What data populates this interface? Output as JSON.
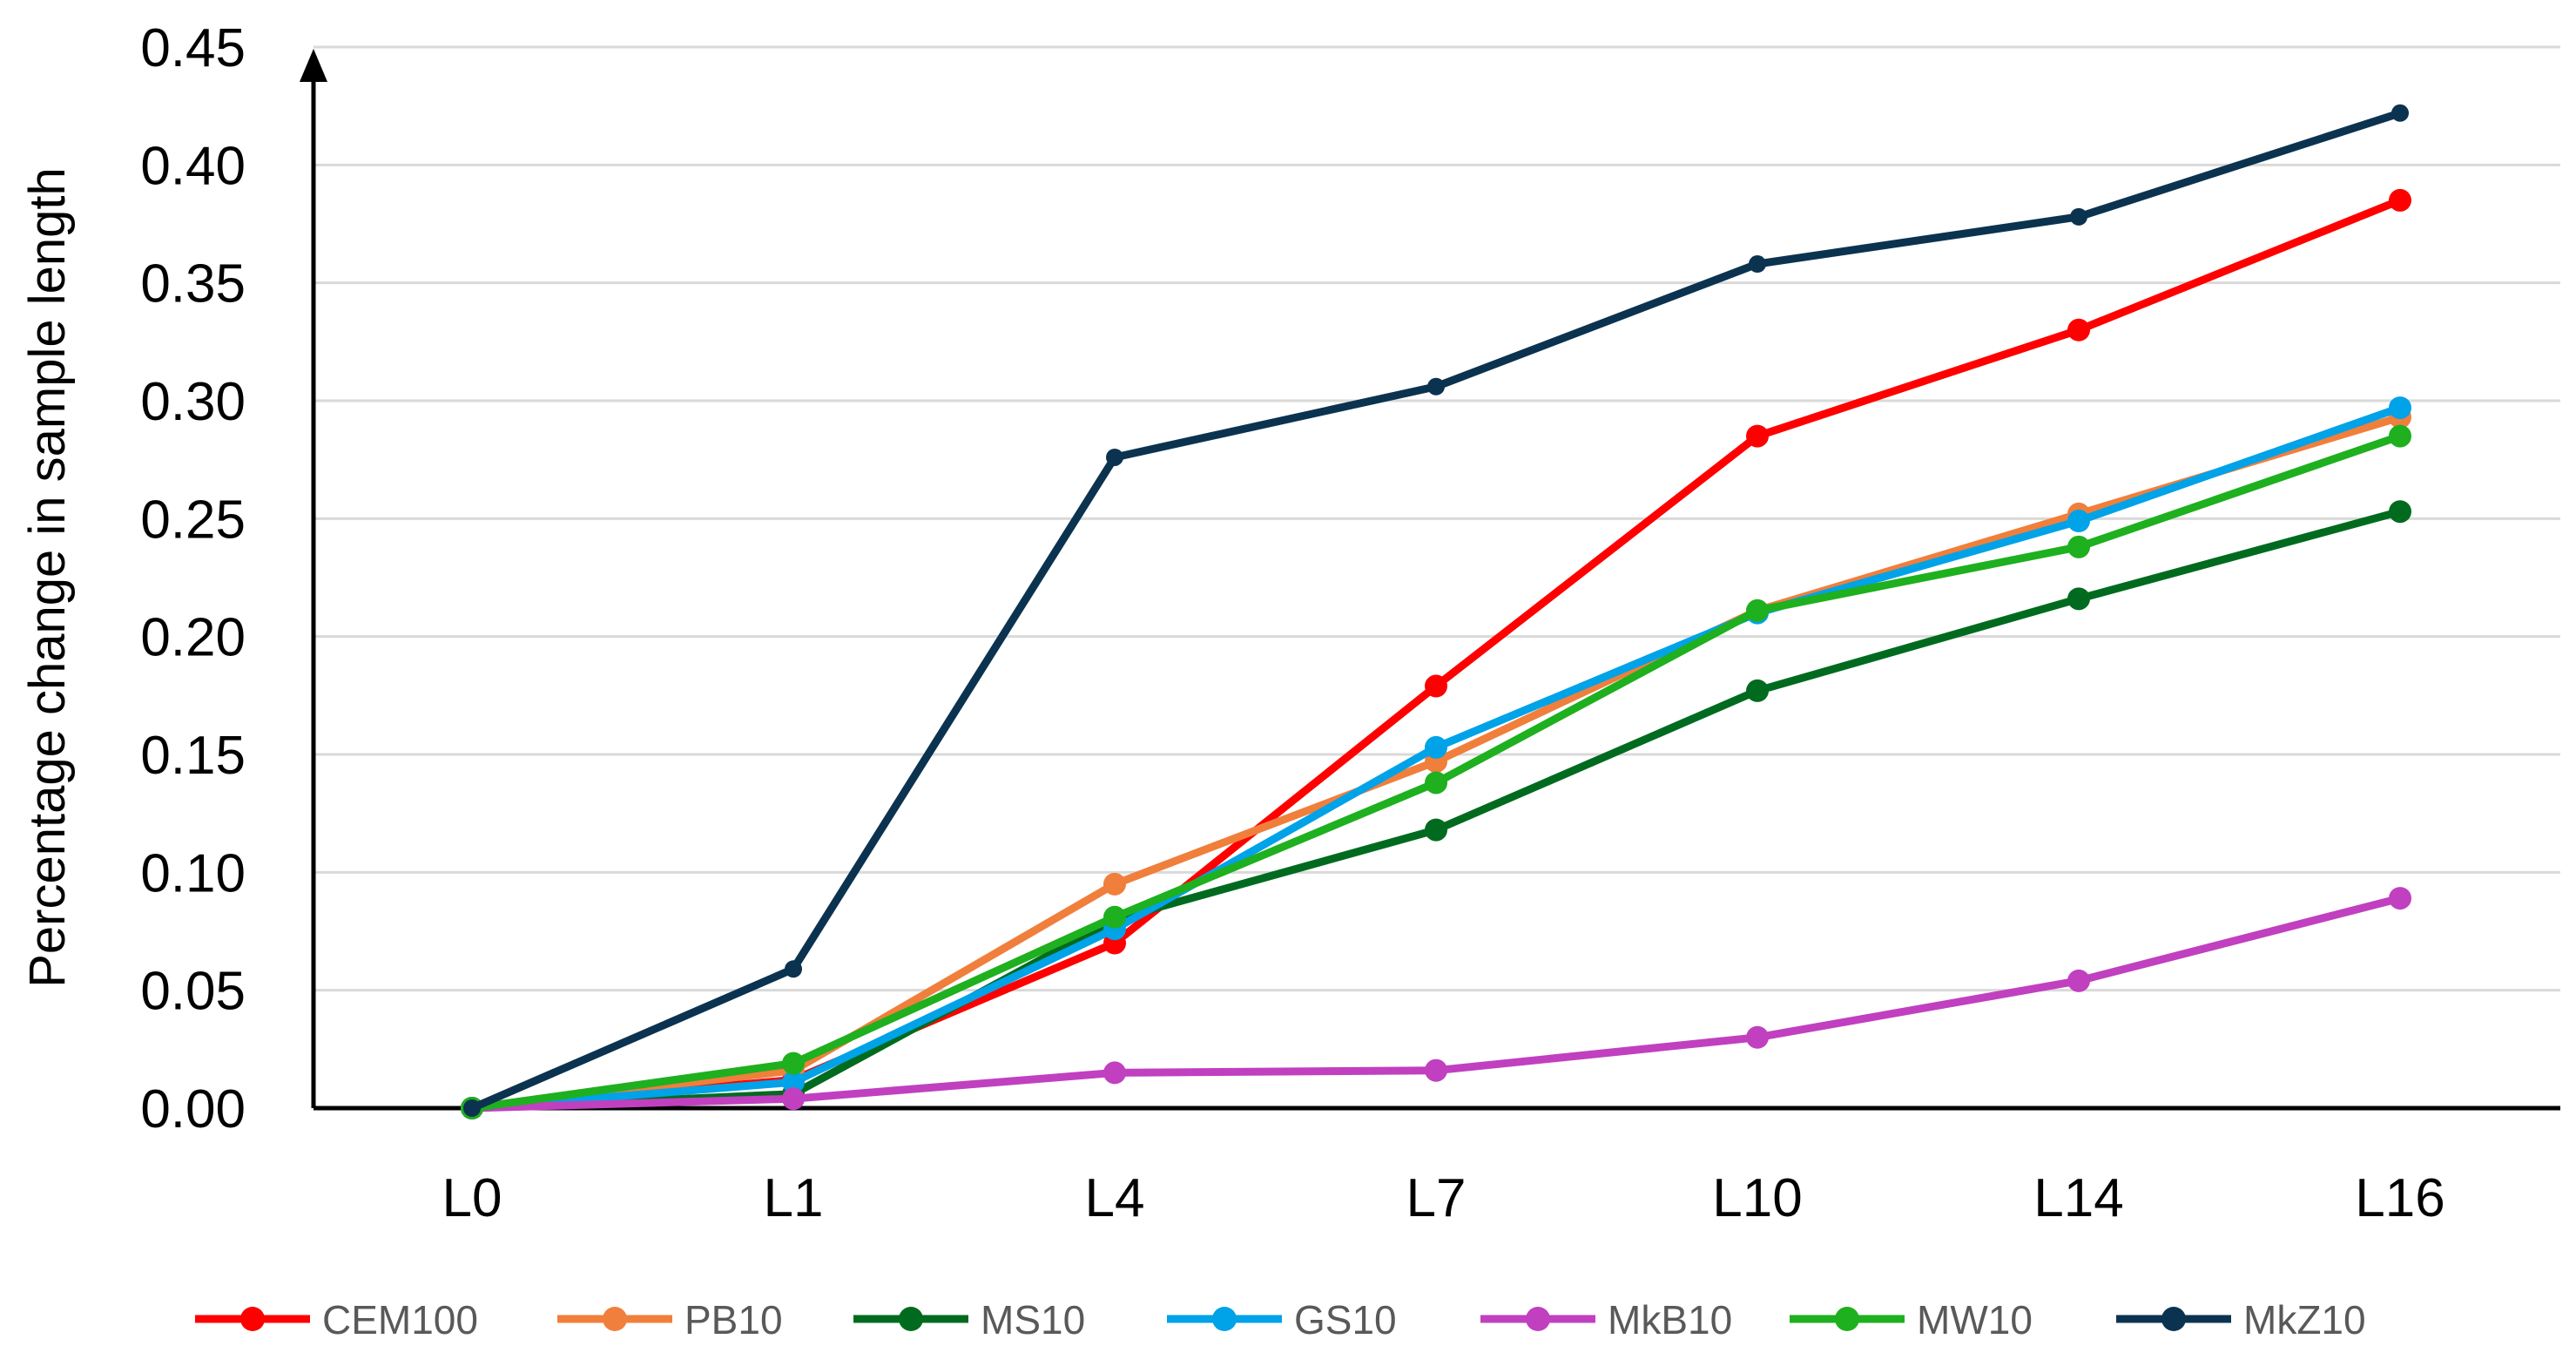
{
  "chart_data": {
    "type": "line",
    "title": "",
    "xlabel": "",
    "ylabel": "Percentage change in sample length",
    "categories": [
      "L0",
      "L1",
      "L4",
      "L7",
      "L10",
      "L14",
      "L16"
    ],
    "ylim": [
      0,
      0.45
    ],
    "y_ticks": [
      "0.00",
      "0.05",
      "0.10",
      "0.15",
      "0.20",
      "0.25",
      "0.30",
      "0.35",
      "0.40",
      "0.45"
    ],
    "grid": true,
    "legend_position": "bottom",
    "series": [
      {
        "name": "CEM100",
        "color": "#FF0000",
        "values": [
          0,
          0.012,
          0.07,
          0.179,
          0.285,
          0.33,
          0.385
        ]
      },
      {
        "name": "PB10",
        "color": "#F07F3C",
        "values": [
          0,
          0.016,
          0.095,
          0.147,
          0.211,
          0.252,
          0.293
        ]
      },
      {
        "name": "MS10",
        "color": "#006B1F",
        "values": [
          0,
          0.006,
          0.08,
          0.118,
          0.177,
          0.216,
          0.253
        ]
      },
      {
        "name": "GS10",
        "color": "#00A2E8",
        "values": [
          0,
          0.011,
          0.076,
          0.153,
          0.21,
          0.249,
          0.297
        ]
      },
      {
        "name": "MkB10",
        "color": "#C040C0",
        "values": [
          0,
          0.004,
          0.015,
          0.016,
          0.03,
          0.054,
          0.089
        ]
      },
      {
        "name": "MW10",
        "color": "#1EB01E",
        "values": [
          0,
          0.019,
          0.081,
          0.138,
          0.211,
          0.238,
          0.285
        ]
      },
      {
        "name": "MkZ10",
        "color": "#0B3350",
        "values": [
          0,
          0.059,
          0.276,
          0.306,
          0.358,
          0.378,
          0.422
        ]
      }
    ]
  }
}
